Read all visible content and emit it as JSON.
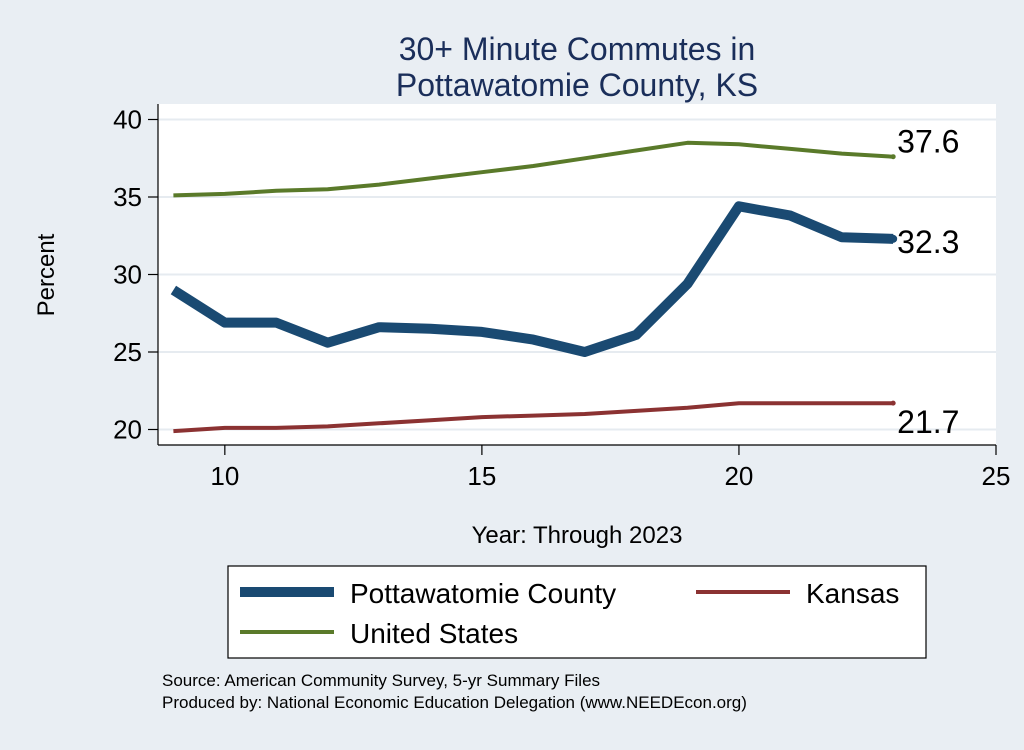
{
  "chart_data": {
    "type": "line",
    "title": [
      "30+ Minute Commutes in",
      "Pottawatomie County, KS"
    ],
    "xlabel": "Year: Through 2023",
    "ylabel": "Percent",
    "xlim": [
      8.7,
      25
    ],
    "ylim": [
      19,
      41
    ],
    "xticks": [
      10,
      15,
      20,
      25
    ],
    "yticks": [
      20,
      25,
      30,
      35,
      40
    ],
    "grid": true,
    "x": [
      9,
      10,
      11,
      12,
      13,
      14,
      15,
      16,
      17,
      18,
      19,
      20,
      21,
      22,
      23
    ],
    "series": [
      {
        "name": "Pottawatomie County",
        "color": "#1a4a72",
        "width": 10,
        "values": [
          29.0,
          26.9,
          26.9,
          25.6,
          26.6,
          26.5,
          26.3,
          25.8,
          25.0,
          26.1,
          29.4,
          34.4,
          33.8,
          32.4,
          32.3
        ],
        "end_label": "32.3"
      },
      {
        "name": "Kansas",
        "color": "#8b3232",
        "width": 4,
        "values": [
          19.9,
          20.1,
          20.1,
          20.2,
          20.4,
          20.6,
          20.8,
          20.9,
          21.0,
          21.2,
          21.4,
          21.7,
          21.7,
          21.7,
          21.7
        ],
        "end_label": "21.7"
      },
      {
        "name": "United States",
        "color": "#5a7a2a",
        "width": 4,
        "values": [
          35.1,
          35.2,
          35.4,
          35.5,
          35.8,
          36.2,
          36.6,
          37.0,
          37.5,
          38.0,
          38.5,
          38.4,
          38.1,
          37.8,
          37.6
        ],
        "end_label": "37.6"
      }
    ],
    "legend": {
      "placement": "bottom",
      "entries": [
        "Pottawatomie County",
        "Kansas",
        "United States"
      ]
    },
    "notes": [
      "Source: American Community Survey, 5-yr Summary Files",
      "Produced by: National Economic Education Delegation (www.NEEDEcon.org)"
    ]
  }
}
